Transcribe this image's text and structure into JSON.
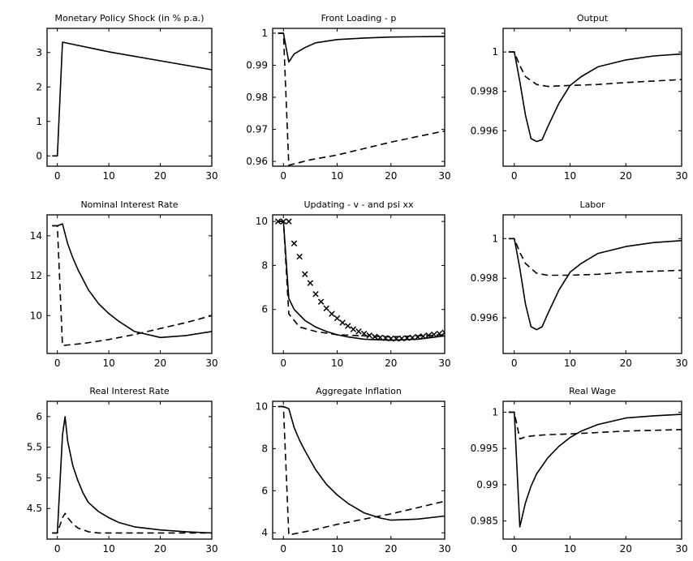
{
  "chart_data": [
    {
      "type": "line",
      "title": "Monetary Policy Shock (in % p.a.)",
      "xlim": [
        -2,
        30
      ],
      "ylim": [
        -0.3,
        3.7
      ],
      "xticks": [
        0,
        10,
        20,
        30
      ],
      "yticks": [
        0,
        1,
        2,
        3
      ],
      "xtick_labels": [
        "0",
        "10",
        "20",
        "30"
      ],
      "ytick_labels": [
        "0",
        "1",
        "2",
        "3"
      ],
      "series": [
        {
          "style": "solid",
          "x": [
            -1,
            0,
            1,
            10,
            20,
            30
          ],
          "y": [
            0,
            0,
            3.3,
            3.02,
            2.76,
            2.5
          ]
        }
      ]
    },
    {
      "type": "line",
      "title": "Front Loading - p",
      "xlim": [
        -2,
        30
      ],
      "ylim": [
        0.9585,
        1.0015
      ],
      "xticks": [
        0,
        10,
        20,
        30
      ],
      "yticks": [
        0.96,
        0.97,
        0.98,
        0.99,
        1
      ],
      "xtick_labels": [
        "0",
        "10",
        "20",
        "30"
      ],
      "ytick_labels": [
        "0.96",
        "0.97",
        "0.98",
        "0.99",
        "1"
      ],
      "series": [
        {
          "style": "solid",
          "x": [
            -1,
            0,
            1,
            2,
            4,
            6,
            10,
            15,
            20,
            30
          ],
          "y": [
            1,
            1,
            0.991,
            0.9935,
            0.9955,
            0.997,
            0.998,
            0.9985,
            0.9988,
            0.999
          ]
        },
        {
          "style": "dashed",
          "x": [
            -1,
            0,
            1,
            5,
            10,
            20,
            30
          ],
          "y": [
            1,
            1,
            0.9588,
            0.9605,
            0.962,
            0.966,
            0.9695
          ]
        }
      ]
    },
    {
      "type": "line",
      "title": "Output",
      "xlim": [
        -2,
        30
      ],
      "ylim": [
        0.9942,
        1.0012
      ],
      "xticks": [
        0,
        10,
        20,
        30
      ],
      "yticks": [
        0.996,
        0.998,
        1
      ],
      "xtick_labels": [
        "0",
        "10",
        "20",
        "30"
      ],
      "ytick_labels": [
        "0.996",
        "0.998",
        "1"
      ],
      "series": [
        {
          "style": "solid",
          "x": [
            -1,
            0,
            1,
            2,
            3,
            4,
            5,
            6,
            8,
            10,
            12,
            15,
            20,
            25,
            30
          ],
          "y": [
            1,
            1,
            0.9985,
            0.9968,
            0.9956,
            0.99545,
            0.99555,
            0.9962,
            0.9974,
            0.9983,
            0.99875,
            0.99925,
            0.9996,
            0.9998,
            0.9999
          ]
        },
        {
          "style": "dashed",
          "x": [
            -1,
            0,
            1,
            2,
            4,
            6,
            10,
            15,
            20,
            30
          ],
          "y": [
            1,
            1,
            0.9993,
            0.99875,
            0.99835,
            0.99825,
            0.9983,
            0.99835,
            0.99845,
            0.9986
          ]
        }
      ]
    },
    {
      "type": "line",
      "title": "Nominal Interest Rate",
      "xlim": [
        -2,
        30
      ],
      "ylim": [
        8.1,
        15.05
      ],
      "xticks": [
        0,
        10,
        20,
        30
      ],
      "yticks": [
        10,
        12,
        14
      ],
      "xtick_labels": [
        "0",
        "10",
        "20",
        "30"
      ],
      "ytick_labels": [
        "10",
        "12",
        "14"
      ],
      "series": [
        {
          "style": "solid",
          "x": [
            -1,
            0,
            1,
            2,
            3,
            4,
            6,
            8,
            10,
            12,
            15,
            20,
            25,
            30
          ],
          "y": [
            14.5,
            14.5,
            14.6,
            13.6,
            12.9,
            12.3,
            11.3,
            10.6,
            10.1,
            9.7,
            9.2,
            8.9,
            9.0,
            9.2
          ]
        },
        {
          "style": "dashed",
          "x": [
            -1,
            0,
            1,
            5,
            10,
            15,
            20,
            25,
            30
          ],
          "y": [
            14.5,
            14.5,
            8.5,
            8.6,
            8.8,
            9.05,
            9.35,
            9.65,
            10.0
          ]
        }
      ]
    },
    {
      "type": "line",
      "title": "Updating - v - and psi xx",
      "xlim": [
        -2,
        30
      ],
      "ylim": [
        4.0,
        10.3
      ],
      "xticks": [
        0,
        10,
        20,
        30
      ],
      "yticks": [
        6,
        8,
        10
      ],
      "xtick_labels": [
        "0",
        "10",
        "20",
        "30"
      ],
      "ytick_labels": [
        "6",
        "8",
        "10"
      ],
      "series": [
        {
          "style": "solid",
          "x": [
            -1,
            0,
            1,
            2,
            4,
            6,
            8,
            10,
            12,
            15,
            20,
            25,
            30
          ],
          "y": [
            10,
            10,
            6.5,
            6.0,
            5.5,
            5.2,
            5.0,
            4.85,
            4.75,
            4.65,
            4.6,
            4.65,
            4.8
          ]
        },
        {
          "style": "dashed",
          "x": [
            -1,
            0,
            1,
            3,
            6,
            10,
            15,
            20,
            25,
            30
          ],
          "y": [
            10,
            10,
            5.8,
            5.2,
            5.0,
            4.85,
            4.8,
            4.75,
            4.8,
            4.85
          ]
        },
        {
          "style": "markers",
          "x": [
            -1,
            0,
            1,
            2,
            3,
            4,
            5,
            6,
            7,
            8,
            9,
            10,
            11,
            12,
            13,
            14,
            15,
            16,
            17,
            18,
            19,
            20,
            21,
            22,
            23,
            24,
            25,
            26,
            27,
            28,
            29,
            30
          ],
          "y": [
            10,
            10,
            10,
            9.0,
            8.4,
            7.6,
            7.2,
            6.7,
            6.35,
            6.05,
            5.8,
            5.6,
            5.4,
            5.25,
            5.1,
            5.0,
            4.9,
            4.82,
            4.76,
            4.72,
            4.7,
            4.68,
            4.67,
            4.68,
            4.7,
            4.72,
            4.75,
            4.78,
            4.82,
            4.86,
            4.9,
            4.95
          ]
        }
      ]
    },
    {
      "type": "line",
      "title": "Labor",
      "xlim": [
        -2,
        30
      ],
      "ylim": [
        0.9942,
        1.0012
      ],
      "xticks": [
        0,
        10,
        20,
        30
      ],
      "yticks": [
        0.996,
        0.998,
        1
      ],
      "xtick_labels": [
        "0",
        "10",
        "20",
        "30"
      ],
      "ytick_labels": [
        "0.996",
        "0.998",
        "1"
      ],
      "series": [
        {
          "style": "solid",
          "x": [
            -1,
            0,
            1,
            2,
            3,
            4,
            5,
            6,
            8,
            10,
            12,
            15,
            20,
            25,
            30
          ],
          "y": [
            1,
            1,
            0.9985,
            0.9967,
            0.99555,
            0.9954,
            0.99555,
            0.9962,
            0.9974,
            0.9983,
            0.99875,
            0.99925,
            0.9996,
            0.9998,
            0.9999
          ]
        },
        {
          "style": "dashed",
          "x": [
            -1,
            0,
            1,
            2,
            4,
            6,
            10,
            15,
            20,
            30
          ],
          "y": [
            1,
            1,
            0.9993,
            0.99875,
            0.99825,
            0.99815,
            0.99815,
            0.9982,
            0.9983,
            0.9984
          ]
        }
      ]
    },
    {
      "type": "line",
      "title": "Real Interest Rate",
      "xlim": [
        -2,
        30
      ],
      "ylim": [
        4.0,
        6.25
      ],
      "xticks": [
        0,
        10,
        20,
        30
      ],
      "yticks": [
        4.5,
        5,
        5.5,
        6
      ],
      "xtick_labels": [
        "0",
        "10",
        "20",
        "30"
      ],
      "ytick_labels": [
        "4.5",
        "5",
        "5.5",
        "6"
      ],
      "series": [
        {
          "style": "solid",
          "x": [
            -1,
            0,
            1,
            1.5,
            2,
            3,
            4,
            5,
            6,
            8,
            10,
            12,
            15,
            20,
            25,
            30
          ],
          "y": [
            4.1,
            4.1,
            5.7,
            6.0,
            5.6,
            5.2,
            4.95,
            4.75,
            4.6,
            4.45,
            4.35,
            4.27,
            4.2,
            4.15,
            4.12,
            4.1
          ]
        },
        {
          "style": "dashed",
          "x": [
            -1,
            0,
            1,
            1.5,
            2,
            3,
            4,
            6,
            8,
            10,
            15,
            20,
            30
          ],
          "y": [
            4.1,
            4.1,
            4.35,
            4.42,
            4.35,
            4.25,
            4.18,
            4.12,
            4.1,
            4.1,
            4.1,
            4.1,
            4.1
          ]
        }
      ]
    },
    {
      "type": "line",
      "title": "Aggregate Inflation",
      "xlim": [
        -2,
        30
      ],
      "ylim": [
        3.7,
        10.25
      ],
      "xticks": [
        0,
        10,
        20,
        30
      ],
      "yticks": [
        4,
        6,
        8,
        10
      ],
      "xtick_labels": [
        "0",
        "10",
        "20",
        "30"
      ],
      "ytick_labels": [
        "4",
        "6",
        "8",
        "10"
      ],
      "series": [
        {
          "style": "solid",
          "x": [
            -1,
            0,
            1,
            2,
            3,
            4,
            6,
            8,
            10,
            12,
            15,
            18,
            20,
            25,
            30
          ],
          "y": [
            10,
            10,
            9.9,
            9.0,
            8.4,
            7.9,
            7.0,
            6.3,
            5.8,
            5.4,
            4.95,
            4.7,
            4.6,
            4.65,
            4.8
          ]
        },
        {
          "style": "dashed",
          "x": [
            -1,
            0,
            1,
            5,
            10,
            15,
            20,
            25,
            30
          ],
          "y": [
            10,
            10,
            3.9,
            4.1,
            4.4,
            4.65,
            4.9,
            5.2,
            5.5
          ]
        }
      ]
    },
    {
      "type": "line",
      "title": "Real Wage",
      "xlim": [
        -2,
        30
      ],
      "ylim": [
        0.9825,
        1.0015
      ],
      "xticks": [
        0,
        10,
        20,
        30
      ],
      "yticks": [
        0.985,
        0.99,
        0.995,
        1
      ],
      "xtick_labels": [
        "0",
        "10",
        "20",
        "30"
      ],
      "ytick_labels": [
        "0.985",
        "0.99",
        "0.995",
        "1"
      ],
      "series": [
        {
          "style": "solid",
          "x": [
            -1,
            0,
            0.5,
            1,
            2,
            3,
            4,
            6,
            8,
            10,
            12,
            15,
            20,
            25,
            30
          ],
          "y": [
            1,
            1,
            0.992,
            0.9842,
            0.9875,
            0.9898,
            0.9915,
            0.9937,
            0.9953,
            0.9965,
            0.9974,
            0.9983,
            0.9992,
            0.9995,
            0.9997
          ]
        },
        {
          "style": "dashed",
          "x": [
            -1,
            0,
            1,
            2,
            4,
            6,
            10,
            15,
            20,
            30
          ],
          "y": [
            1,
            1,
            0.9963,
            0.9966,
            0.9968,
            0.9969,
            0.997,
            0.9972,
            0.9974,
            0.9976
          ]
        }
      ]
    }
  ]
}
